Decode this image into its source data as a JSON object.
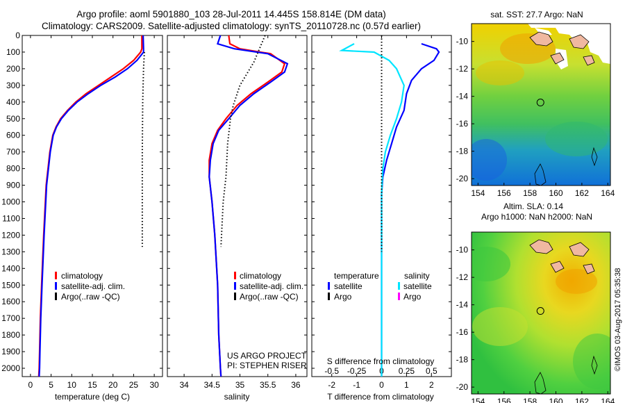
{
  "header": {
    "line1": "Argo profile: aoml 5901880_103 28-Jul-2011 14.445S 158.814E (DM data)",
    "line2": "Climatology: CARS2009. Satellite-adjusted climatology: synTS_20110728.nc (0.57d earlier)"
  },
  "side_text": "©IMOS 03-Aug-2017 05:35:38",
  "project": {
    "line1": "US ARGO PROJECT",
    "line2": "PI: STEPHEN RISER"
  },
  "colors": {
    "climatology": "#ff0000",
    "satellite": "#0000ff",
    "argo": "#000000",
    "salinity_diff": "#00e5ff",
    "argo_s": "#ff00ff"
  },
  "legends": {
    "temperature": [
      "climatology",
      "satellite-adj. clim.",
      "Argo(..raw -QC)"
    ],
    "salinity": [
      "climatology",
      "satellite-adj. clim.",
      "Argo(..raw -QC)"
    ],
    "diff": {
      "temp_title": "temperature",
      "sal_title": "salinity",
      "temp_items": [
        "satellite",
        "Argo"
      ],
      "sal_items": [
        "satellite",
        "Argo"
      ]
    }
  },
  "chart_data": [
    {
      "type": "line",
      "xlabel": "temperature (deg C)",
      "xlim": [
        -2,
        32
      ],
      "xticks": [
        0,
        5,
        10,
        15,
        20,
        25,
        30
      ],
      "xtick_labels": [
        "0",
        "5",
        "10",
        "15",
        "20",
        "25",
        "30"
      ],
      "ylim": [
        0,
        2050
      ],
      "yticks": [
        0,
        100,
        200,
        300,
        400,
        500,
        600,
        700,
        800,
        900,
        1000,
        1100,
        1200,
        1300,
        1400,
        1500,
        1600,
        1700,
        1800,
        1900,
        2000
      ],
      "ytick_labels": [
        "0",
        "100",
        "200",
        "300",
        "400",
        "500",
        "600",
        "700",
        "800",
        "900",
        "1000",
        "1100",
        "1200",
        "1300",
        "1400",
        "1500",
        "1600",
        "1700",
        "1800",
        "1900",
        "2000"
      ],
      "series": [
        {
          "name": "climatology",
          "style": "solid",
          "color": "#ff0000",
          "x": [
            27.0,
            27.0,
            26.7,
            25.0,
            22.5,
            19.5,
            16.5,
            13.5,
            11.0,
            9.0,
            7.3,
            6.2,
            5.4,
            4.7,
            3.8,
            3.2,
            2.7,
            2.4,
            2.2,
            2.1,
            2.0
          ],
          "y": [
            0,
            80,
            100,
            150,
            200,
            250,
            300,
            350,
            400,
            450,
            500,
            550,
            600,
            700,
            900,
            1200,
            1500,
            1700,
            1900,
            2000,
            2050
          ]
        },
        {
          "name": "satellite-adj. clim.",
          "style": "solid",
          "color": "#0000ff",
          "x": [
            27.3,
            27.4,
            27.4,
            25.8,
            23.5,
            20.5,
            17.0,
            14.0,
            11.3,
            9.2,
            7.5,
            6.3,
            5.5,
            4.8,
            3.9,
            3.3,
            2.8,
            2.5,
            2.3,
            2.2,
            2.1
          ],
          "y": [
            0,
            80,
            100,
            150,
            200,
            250,
            300,
            350,
            400,
            450,
            500,
            550,
            600,
            700,
            900,
            1200,
            1500,
            1700,
            1900,
            2000,
            2050
          ]
        },
        {
          "name": "Argo(..raw -QC)",
          "style": "dotted",
          "color": "#000000",
          "x": [
            27.6,
            27.4,
            27.2,
            27.1,
            27.1,
            27.1
          ],
          "y": [
            100,
            200,
            400,
            700,
            1000,
            1270
          ]
        }
      ]
    },
    {
      "type": "line",
      "xlabel": "salinity",
      "xlim": [
        33.7,
        36.2
      ],
      "xticks": [
        34,
        34.5,
        35,
        35.5,
        36
      ],
      "xtick_labels": [
        "34",
        "34.5",
        "35",
        "35.5",
        "36"
      ],
      "ylim": [
        0,
        2050
      ],
      "series": [
        {
          "name": "climatology",
          "style": "solid",
          "color": "#ff0000",
          "x": [
            34.8,
            34.82,
            35.0,
            35.55,
            35.8,
            35.75,
            35.5,
            35.2,
            34.95,
            34.75,
            34.6,
            34.5,
            34.45,
            34.45,
            34.5,
            34.55,
            34.6,
            34.62,
            34.65,
            34.66
          ],
          "y": [
            0,
            50,
            80,
            110,
            170,
            220,
            280,
            350,
            420,
            500,
            570,
            650,
            750,
            850,
            1000,
            1200,
            1500,
            1800,
            2000,
            2050
          ]
        },
        {
          "name": "satellite-adj. clim.",
          "style": "solid",
          "color": "#0000ff",
          "x": [
            34.65,
            34.6,
            34.9,
            35.5,
            35.85,
            35.8,
            35.55,
            35.25,
            35.0,
            34.8,
            34.62,
            34.52,
            34.47,
            34.45,
            34.5,
            34.55,
            34.6,
            34.62,
            34.65,
            34.66
          ],
          "y": [
            0,
            50,
            80,
            110,
            170,
            220,
            280,
            350,
            420,
            500,
            570,
            650,
            750,
            850,
            1000,
            1200,
            1500,
            1800,
            2000,
            2050
          ]
        },
        {
          "name": "Argo(..raw -QC)",
          "style": "dotted",
          "color": "#000000",
          "x": [
            35.45,
            35.25,
            35.0,
            34.88,
            34.83,
            34.78,
            34.75,
            34.7,
            34.67,
            34.66
          ],
          "y": [
            0,
            160,
            300,
            420,
            500,
            650,
            850,
            1000,
            1200,
            1270
          ]
        }
      ]
    },
    {
      "type": "line",
      "xlabel": "T difference from climatology",
      "xlabel_top": "S difference from climatology",
      "xlim": [
        -2.8,
        2.8
      ],
      "xticks": [
        -2,
        -1,
        0,
        1,
        2
      ],
      "xtick_labels": [
        "-2",
        "-1",
        "0",
        "1",
        "2"
      ],
      "sticks": [
        -2,
        -1,
        0,
        1,
        2
      ],
      "stick_labels": [
        "-0.5",
        "-0.25",
        "0",
        "0.25",
        "0.5"
      ],
      "ylim": [
        0,
        2050
      ],
      "series": [
        {
          "name": "temperature satellite",
          "style": "solid",
          "color": "#0000ff",
          "x": [
            1.6,
            2.2,
            2.3,
            2.1,
            1.6,
            1.2,
            1.0,
            0.9,
            0.6,
            0.4,
            0.2,
            0.05,
            0.0,
            0.0,
            0.0,
            0.0
          ],
          "y": [
            50,
            80,
            100,
            150,
            200,
            270,
            350,
            450,
            550,
            650,
            750,
            850,
            950,
            1200,
            1600,
            2050
          ]
        },
        {
          "name": "salinity satellite",
          "style": "solid",
          "color": "#00e5ff",
          "x": [
            -1.1,
            -1.6,
            -0.3,
            0.3,
            0.6,
            0.9,
            0.8,
            0.6,
            0.35,
            0.15,
            0.05,
            0.0,
            0.0,
            0.0,
            0.0
          ],
          "y": [
            50,
            90,
            100,
            150,
            200,
            300,
            400,
            500,
            600,
            700,
            800,
            950,
            1200,
            1600,
            2050
          ]
        },
        {
          "name": "Argo",
          "style": "dotted",
          "color": "#000000",
          "x": [
            0,
            0
          ],
          "y": [
            0,
            1300
          ]
        }
      ]
    },
    {
      "type": "heatmap",
      "title": "sat. SST: 27.7  Argo: NaN",
      "xticks": [
        "154",
        "156",
        "158",
        "160",
        "162",
        "164"
      ],
      "yticks": [
        "-10",
        "-12",
        "-14",
        "-16",
        "-18",
        "-20"
      ],
      "xlim": [
        153.5,
        164.2
      ],
      "ylim": [
        -20.5,
        -8.7
      ],
      "argo_position": [
        158.81,
        -14.45
      ]
    },
    {
      "type": "heatmap",
      "title": "Altim. SLA: 0.14",
      "subtitle": "Argo h1000: NaN  h2000: NaN",
      "xticks": [
        "154",
        "156",
        "158",
        "160",
        "162",
        "164"
      ],
      "yticks": [
        "-10",
        "-12",
        "-14",
        "-16",
        "-18",
        "-20"
      ],
      "xlim": [
        153.5,
        164.2
      ],
      "ylim": [
        -20.5,
        -8.7
      ],
      "argo_position": [
        158.81,
        -14.45
      ]
    }
  ]
}
